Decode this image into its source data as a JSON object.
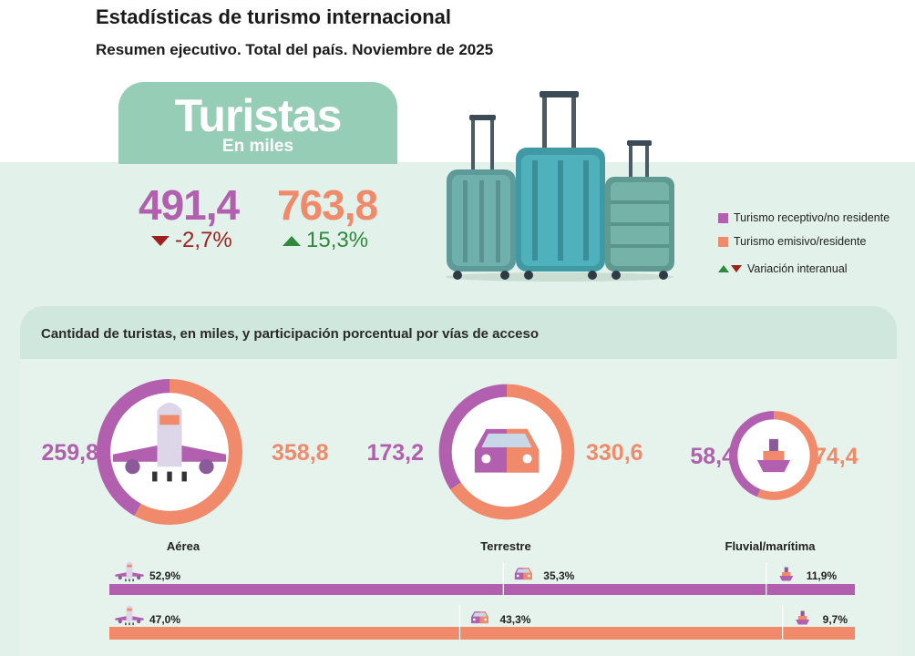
{
  "header": {
    "title": "Estadísticas de turismo internacional",
    "subtitle": "Resumen ejecutivo. Total del país. Noviembre de 2025"
  },
  "kpi": {
    "title": "Turistas",
    "unit": "En miles",
    "receptive": {
      "value": "491,4",
      "variation": "-2,7%",
      "direction": "down"
    },
    "emissive": {
      "value": "763,8",
      "variation": "15,3%",
      "direction": "up"
    }
  },
  "legend": {
    "receptive_label": "Turismo receptivo/no residente",
    "emissive_label": "Turismo emisivo/residente",
    "variation_label": "Variación interanual"
  },
  "colors": {
    "receptive": "#b15fae",
    "emissive": "#f08a6b",
    "up": "#2d8a3c",
    "down": "#a0201e",
    "header_green": "#96cdb6"
  },
  "panel": {
    "title": "Cantidad de turistas, en miles, y participación porcentual por vías de acceso"
  },
  "chart_data": [
    {
      "type": "pie",
      "variant": "donut",
      "categories": [
        "Aérea",
        "Terrestre",
        "Fluvial/marítima"
      ],
      "series": [
        {
          "name": "Turismo receptivo/no residente",
          "values": [
            259.8,
            173.2,
            58.4
          ],
          "labels": [
            "259,8",
            "173,2",
            "58,4"
          ]
        },
        {
          "name": "Turismo emisivo/residente",
          "values": [
            358.8,
            330.6,
            74.4
          ],
          "labels": [
            "358,8",
            "330,6",
            "74,4"
          ]
        }
      ],
      "icons": [
        "airplane-icon",
        "car-icon",
        "ship-icon"
      ]
    },
    {
      "type": "bar",
      "orientation": "horizontal-stacked-100",
      "categories": [
        "Aérea",
        "Terrestre",
        "Fluvial/marítima"
      ],
      "series": [
        {
          "name": "Turismo receptivo/no residente",
          "values": [
            52.9,
            35.3,
            11.9
          ],
          "labels": [
            "52,9%",
            "35,3%",
            "11,9%"
          ]
        },
        {
          "name": "Turismo emisivo/residente",
          "values": [
            47.0,
            43.3,
            9.7
          ],
          "labels": [
            "47,0%",
            "43,3%",
            "9,7%"
          ]
        }
      ],
      "unit": "%"
    }
  ]
}
